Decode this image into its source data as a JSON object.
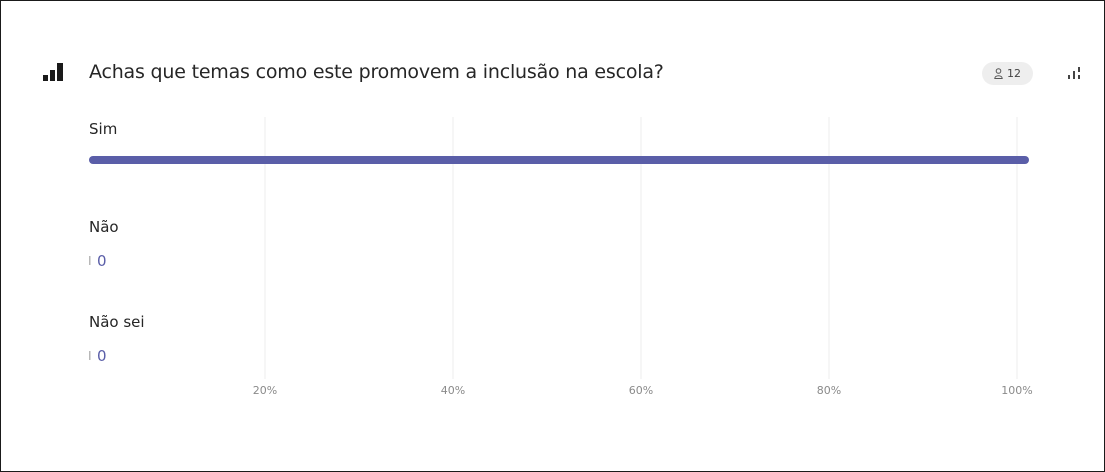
{
  "question": {
    "title": "Achas que temas como este promovem a inclusão na escola?",
    "respondents": "12",
    "icons": {
      "question": "bar-chart-icon",
      "respondents": "person-icon",
      "chart_type": "chart-type-icon"
    }
  },
  "colors": {
    "bar": "#5a5ea8",
    "value_text": "#5a5ea8",
    "grid": "#ececec",
    "text": "#262626"
  },
  "chart_data": {
    "type": "bar",
    "orientation": "horizontal",
    "categories": [
      "Sim",
      "Não",
      "Não sei"
    ],
    "values": [
      12,
      0,
      0
    ],
    "value_labels": [
      "",
      "0",
      "0"
    ],
    "xticks": [
      "20%",
      "40%",
      "60%",
      "80%",
      "100%"
    ],
    "xlim": [
      0,
      100
    ],
    "grid": true,
    "legend": "none"
  }
}
